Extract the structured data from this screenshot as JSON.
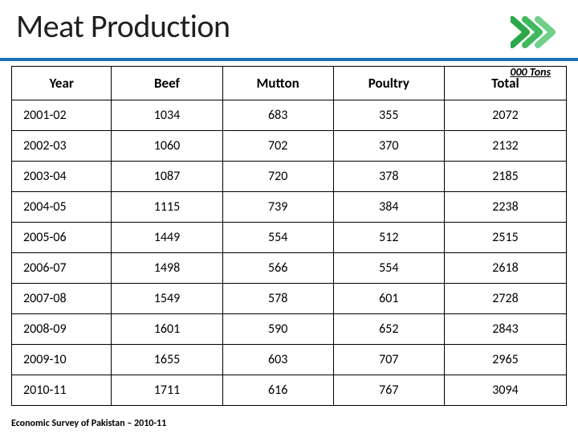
{
  "slide": {
    "title": "Meat Production",
    "title_color": "#1f1f1f",
    "header_underline_color": "#1f6fb5",
    "accent_chevron_colors": [
      "#2aa84a",
      "#3fb85e",
      "#6fd08a"
    ],
    "unit_label": "000 Tons",
    "unit_label_color": "#000000",
    "footer_note": "Economic Survey of Pakistan – 2010-11",
    "footer_color": "#000000",
    "background_color": "#ffffff"
  },
  "table": {
    "columns": [
      "Year",
      "Beef",
      "Mutton",
      "Poultry",
      "Total"
    ],
    "column_widths_pct": [
      18,
      20,
      20,
      20,
      22
    ],
    "header_fontsize": 17,
    "cell_fontsize": 16,
    "border_color": "#000000",
    "rows": [
      [
        "2001-02",
        "1034",
        "683",
        "355",
        "2072"
      ],
      [
        "2002-03",
        "1060",
        "702",
        "370",
        "2132"
      ],
      [
        "2003-04",
        "1087",
        "720",
        "378",
        "2185"
      ],
      [
        "2004-05",
        "1115",
        "739",
        "384",
        "2238"
      ],
      [
        "2005-06",
        "1449",
        "554",
        "512",
        "2515"
      ],
      [
        "2006-07",
        "1498",
        "566",
        "554",
        "2618"
      ],
      [
        "2007-08",
        "1549",
        "578",
        "601",
        "2728"
      ],
      [
        "2008-09",
        "1601",
        "590",
        "652",
        "2843"
      ],
      [
        "2009-10",
        "1655",
        "603",
        "707",
        "2965"
      ],
      [
        "2010-11",
        "1711",
        "616",
        "767",
        "3094"
      ]
    ]
  }
}
